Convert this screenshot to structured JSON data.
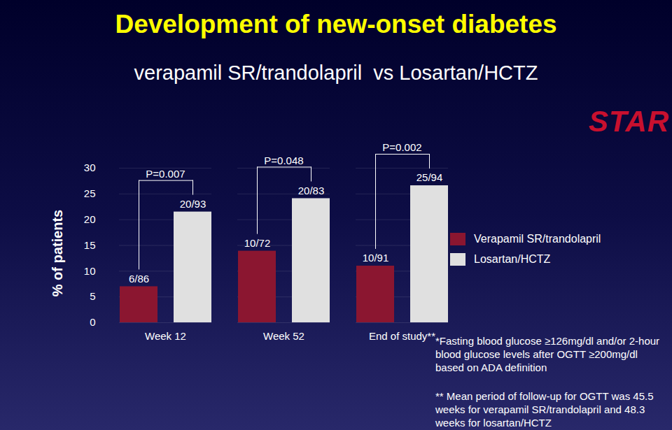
{
  "chart_data": {
    "type": "bar",
    "title": "Development of new-onset diabetes",
    "subtitle": "verapamil SR/trandolapril  vs Losartan/HCTZ",
    "y_label": "% of patients",
    "categories": [
      "Week 12",
      "Week 52",
      "End of study**"
    ],
    "series": [
      {
        "name": "Verapamil SR/trandolapril",
        "color": "#8b1630",
        "values": [
          7.0,
          13.9,
          11.0
        ],
        "value_labels": [
          "6/86",
          "10/72",
          "10/91"
        ]
      },
      {
        "name": "Losartan/HCTZ",
        "color": "#e0e0e0",
        "values": [
          21.5,
          24.1,
          26.6
        ],
        "value_labels": [
          "20/93",
          "20/83",
          "25/94"
        ]
      }
    ],
    "p_values": [
      "P=0.007",
      "P=0.048",
      "P=0.002"
    ],
    "ylim": [
      0,
      30
    ],
    "yticks": [
      0,
      5,
      10,
      15,
      20,
      25,
      30
    ],
    "grid": true,
    "data_labels": true,
    "legend": "right",
    "footnotes": [
      "*Fasting blood glucose ≥126mg/dl and/or 2-hour blood glucose levels after OGTT ≥200mg/dl based on ADA definition",
      "** Mean period of follow-up for OGTT was 45.5 weeks for verapamil SR/trandolapril and 48.3 weeks for losartan/HCTZ"
    ],
    "logo_text": "STAR"
  }
}
